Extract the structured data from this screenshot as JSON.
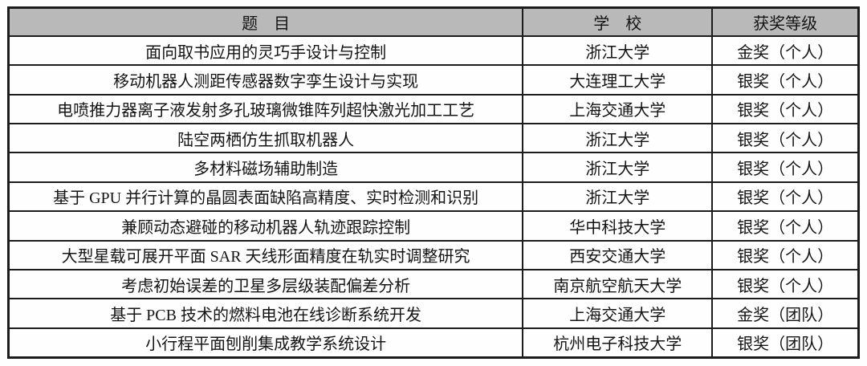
{
  "table": {
    "columns": [
      {
        "key": "title",
        "label": "题　目"
      },
      {
        "key": "school",
        "label": "学　校"
      },
      {
        "key": "award",
        "label": "获奖等级"
      }
    ],
    "rows": [
      {
        "title": "面向取书应用的灵巧手设计与控制",
        "school": "浙江大学",
        "award": "金奖（个人）"
      },
      {
        "title": "移动机器人测距传感器数字孪生设计与实现",
        "school": "大连理工大学",
        "award": "银奖（个人）"
      },
      {
        "title": "电喷推力器离子液发射多孔玻璃微锥阵列超快激光加工工艺",
        "school": "上海交通大学",
        "award": "银奖（个人）"
      },
      {
        "title": "陆空两栖仿生抓取机器人",
        "school": "浙江大学",
        "award": "银奖（个人）"
      },
      {
        "title": "多材料磁场辅助制造",
        "school": "浙江大学",
        "award": "银奖（个人）"
      },
      {
        "title": "基于 GPU 并行计算的晶圆表面缺陷高精度、实时检测和识别",
        "school": "浙江大学",
        "award": "银奖（个人）"
      },
      {
        "title": "兼顾动态避碰的移动机器人轨迹跟踪控制",
        "school": "华中科技大学",
        "award": "银奖（个人）"
      },
      {
        "title": "大型星载可展开平面 SAR 天线形面精度在轨实时调整研究",
        "school": "西安交通大学",
        "award": "银奖（个人）"
      },
      {
        "title": "考虑初始误差的卫星多层级装配偏差分析",
        "school": "南京航空航天大学",
        "award": "银奖（个人）"
      },
      {
        "title": "基于 PCB 技术的燃料电池在线诊断系统开发",
        "school": "上海交通大学",
        "award": "金奖（团队）"
      },
      {
        "title": "小行程平面刨削集成教学系统设计",
        "school": "杭州电子科技大学",
        "award": "银奖（团队）"
      }
    ],
    "colors": {
      "header_bg": "#b9b9b9",
      "border": "#1c1c1c",
      "text": "#141414"
    }
  }
}
